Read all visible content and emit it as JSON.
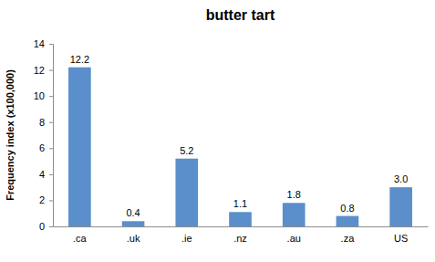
{
  "chart_data": {
    "type": "bar",
    "title": "butter tart",
    "y_label": "Frequency index (x100,000)",
    "categories": [
      ".ca",
      ".uk",
      ".ie",
      ".nz",
      ".au",
      ".za",
      "US"
    ],
    "values": [
      12.2,
      0.4,
      5.2,
      1.1,
      1.8,
      0.8,
      3.0
    ],
    "value_labels": [
      "12.2",
      "0.4",
      "5.2",
      "1.1",
      "1.8",
      "0.8",
      "3.0"
    ],
    "color": "#5a8fcb",
    "ylim": [
      0,
      14
    ],
    "yticks": [
      0,
      2,
      4,
      6,
      8,
      10,
      12,
      14
    ],
    "grid": false,
    "data_labels": true
  }
}
